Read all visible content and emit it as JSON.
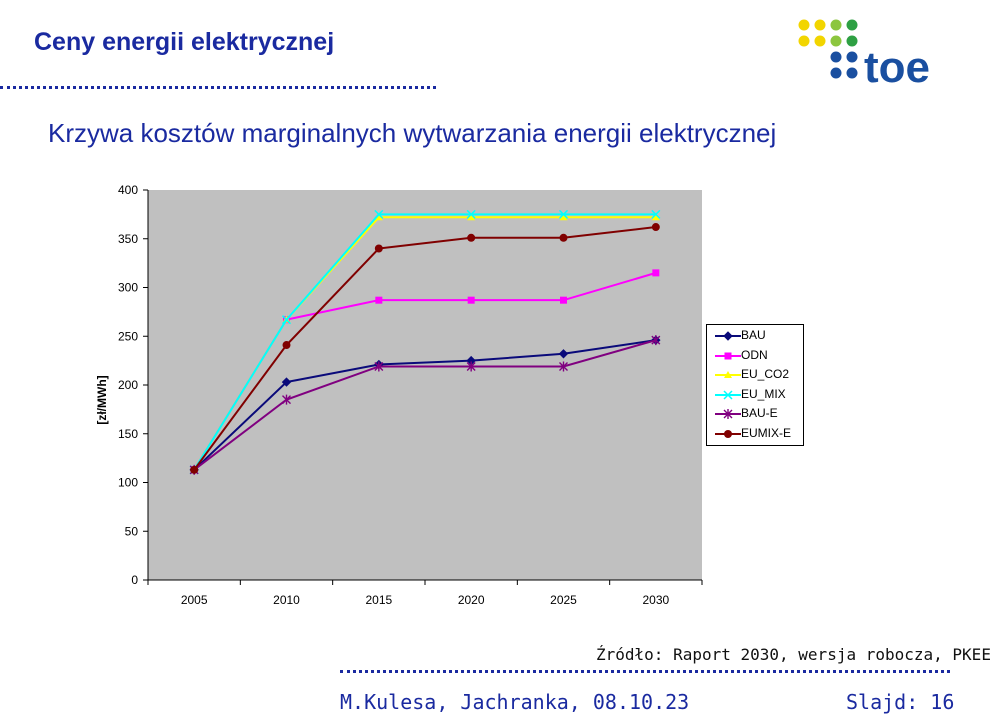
{
  "slide": {
    "title": "Ceny energii elektrycznej",
    "subtitle": "Krzywa kosztów marginalnych wytwarzania energii elektrycznej",
    "source": "Źródło: Raport  2030, wersja robocza, PKEE",
    "author": "M.Kulesa, Jachranka, 08.10.23",
    "slide_number": "Slajd: 16",
    "logo_text": "toe"
  },
  "colors": {
    "title": "#1a2aa0",
    "plot_bg": "#c0c0c0",
    "BAU": "#0a0a7a",
    "ODN": "#ff00ff",
    "EU_CO2": "#ffff00",
    "EU_MIX": "#00ffff",
    "BAU-E": "#800080",
    "EUMIX-E": "#800000"
  },
  "chart_data": {
    "type": "line",
    "title": "",
    "xlabel": "",
    "ylabel": "[zł/MWh]",
    "categories": [
      "2005",
      "2010",
      "2015",
      "2020",
      "2025",
      "2030"
    ],
    "ylim": [
      0,
      400
    ],
    "yticks": [
      "0",
      "50",
      "100",
      "150",
      "200",
      "250",
      "300",
      "350",
      "400"
    ],
    "grid": false,
    "legend_position": "right",
    "series": [
      {
        "name": "BAU",
        "marker": "diamond",
        "values": [
          113,
          203,
          221,
          225,
          232,
          246
        ]
      },
      {
        "name": "ODN",
        "marker": "square",
        "values": [
          113,
          267,
          287,
          287,
          287,
          315
        ]
      },
      {
        "name": "EU_CO2",
        "marker": "triangle",
        "values": [
          113,
          267,
          372,
          372,
          372,
          372
        ]
      },
      {
        "name": "EU_MIX",
        "marker": "x",
        "values": [
          113,
          267,
          375,
          375,
          375,
          375
        ]
      },
      {
        "name": "BAU-E",
        "marker": "star",
        "values": [
          113,
          185,
          219,
          219,
          219,
          246
        ]
      },
      {
        "name": "EUMIX-E",
        "marker": "circle",
        "values": [
          113,
          241,
          340,
          351,
          351,
          362
        ]
      }
    ]
  }
}
